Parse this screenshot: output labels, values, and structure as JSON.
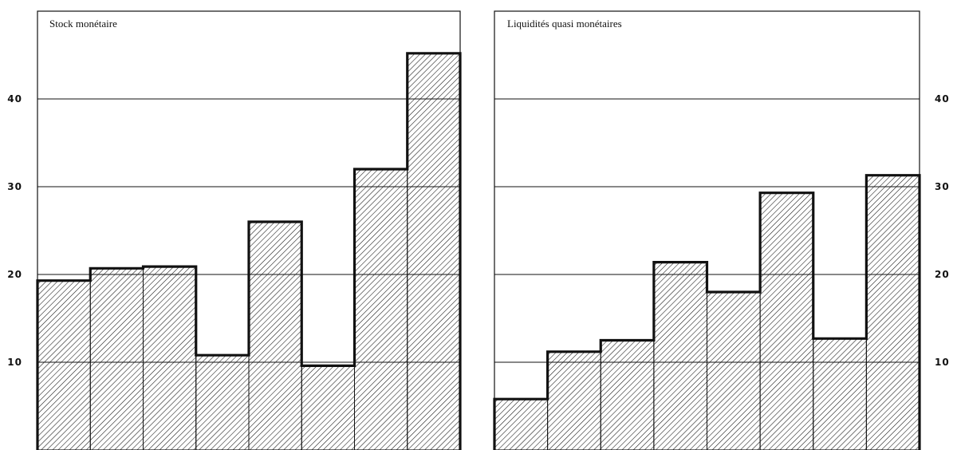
{
  "chart_data": [
    {
      "type": "bar",
      "title": "Stock monétaire",
      "values": [
        19.3,
        20.7,
        20.9,
        10.8,
        26.0,
        9.6,
        32.0,
        45.2
      ],
      "ylim": [
        0,
        50
      ],
      "yticks": [
        {
          "value": 10,
          "label": "10"
        },
        {
          "value": 20,
          "label": "20"
        },
        {
          "value": 30,
          "label": "30"
        },
        {
          "value": 40,
          "label": "40"
        }
      ],
      "tick_side": "left",
      "grid": true,
      "color": "#111111"
    },
    {
      "type": "bar",
      "title": "Liquidités quasi monétaires",
      "values": [
        5.8,
        11.2,
        12.5,
        21.4,
        18.0,
        29.3,
        12.7,
        31.3
      ],
      "ylim": [
        0,
        50
      ],
      "yticks": [
        {
          "value": 10,
          "label": "10"
        },
        {
          "value": 20,
          "label": "20"
        },
        {
          "value": 30,
          "label": "30"
        },
        {
          "value": 40,
          "label": "40"
        }
      ],
      "tick_side": "right",
      "grid": true,
      "color": "#111111"
    }
  ]
}
